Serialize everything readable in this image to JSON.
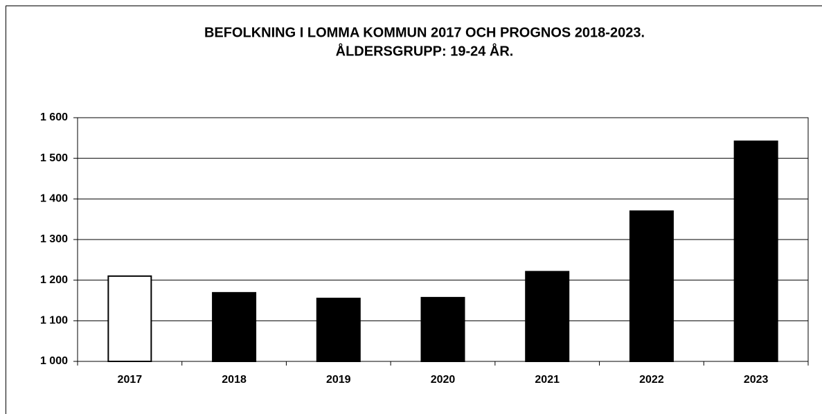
{
  "chart_data": {
    "type": "bar",
    "title": [
      "BEFOLKNING I LOMMA KOMMUN 2017 OCH PROGNOS 2018-2023.",
      "ÅLDERSGRUPP: 19-24 ÅR."
    ],
    "categories": [
      "2017",
      "2018",
      "2019",
      "2020",
      "2021",
      "2022",
      "2023"
    ],
    "values": [
      1210,
      1169,
      1155,
      1157,
      1221,
      1370,
      1542
    ],
    "colors": [
      "#ffffff",
      "#000000",
      "#000000",
      "#000000",
      "#000000",
      "#000000",
      "#000000"
    ],
    "ylim": [
      1000,
      1600
    ],
    "yticks": [
      {
        "value": 1000,
        "label": "1 000"
      },
      {
        "value": 1100,
        "label": "1 100"
      },
      {
        "value": 1200,
        "label": "1 200"
      },
      {
        "value": 1300,
        "label": "1 300"
      },
      {
        "value": 1400,
        "label": "1 400"
      },
      {
        "value": 1500,
        "label": "1 500"
      },
      {
        "value": 1600,
        "label": "1 600"
      }
    ],
    "grid": true
  }
}
